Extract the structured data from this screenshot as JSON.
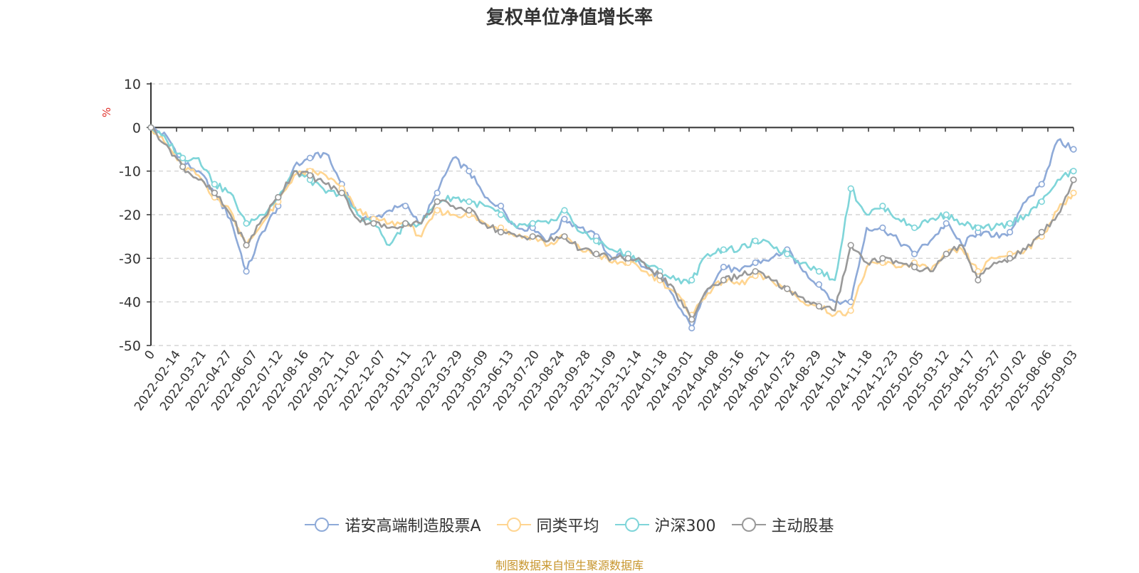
{
  "title": "复权单位净值增长率",
  "source_note": "制图数据来自恒生聚源数据库",
  "chart_data": {
    "type": "line",
    "title": "复权单位净值增长率",
    "ylabel": "%",
    "xlabel": "",
    "ylim": [
      -50,
      10
    ],
    "yticks": [
      10,
      0,
      -10,
      -20,
      -30,
      -40,
      -50
    ],
    "grid": true,
    "legend_position": "bottom",
    "x_tick_labels": [
      "0",
      "2022-02-14",
      "2022-03-21",
      "2022-04-27",
      "2022-06-07",
      "2022-07-12",
      "2022-08-16",
      "2022-09-21",
      "2022-11-02",
      "2022-12-07",
      "2023-01-11",
      "2023-02-22",
      "2023-03-29",
      "2023-05-09",
      "2023-06-13",
      "2023-07-20",
      "2023-08-24",
      "2023-09-28",
      "2023-11-09",
      "2023-12-14",
      "2024-01-18",
      "2024-03-01",
      "2024-04-08",
      "2024-05-16",
      "2024-06-21",
      "2024-07-25",
      "2024-08-29",
      "2024-10-14",
      "2024-11-18",
      "2024-12-23",
      "2025-02-05",
      "2025-03-12",
      "2025-04-17",
      "2025-05-27",
      "2025-07-02",
      "2025-08-06",
      "2025-09-03"
    ],
    "series": [
      {
        "name": "诺安高端制造股票A",
        "color": "#8eaad8",
        "values": [
          0,
          -2,
          -8,
          -10,
          -15,
          -21,
          -33,
          -24,
          -18,
          -9,
          -7,
          -6,
          -13,
          -20,
          -21,
          -19,
          -18,
          -22,
          -15,
          -7,
          -10,
          -16,
          -18,
          -23,
          -23,
          -26,
          -21,
          -23,
          -25,
          -30,
          -29,
          -32,
          -34,
          -40,
          -46,
          -37,
          -32,
          -33,
          -31,
          -30,
          -28,
          -33,
          -36,
          -40,
          -40,
          -23,
          -23,
          -26,
          -29,
          -26,
          -22,
          -27,
          -24,
          -25,
          -24,
          -17,
          -13,
          -3,
          -5
        ]
      },
      {
        "name": "同类平均",
        "color": "#ffd591",
        "values": [
          0,
          -4,
          -9,
          -11,
          -16,
          -19,
          -27,
          -22,
          -17,
          -11,
          -10,
          -11,
          -14,
          -19,
          -21,
          -22,
          -22,
          -25,
          -19,
          -20,
          -20,
          -22,
          -23,
          -25,
          -25,
          -27,
          -25,
          -28,
          -29,
          -31,
          -31,
          -33,
          -35,
          -38,
          -43,
          -38,
          -35,
          -36,
          -34,
          -35,
          -37,
          -40,
          -41,
          -43,
          -42,
          -32,
          -31,
          -32,
          -31,
          -33,
          -29,
          -28,
          -33,
          -30,
          -29,
          -28,
          -25,
          -19,
          -15
        ]
      },
      {
        "name": "沪深300",
        "color": "#7fd5d9",
        "values": [
          0,
          -3,
          -7,
          -7,
          -13,
          -15,
          -22,
          -20,
          -16,
          -10,
          -12,
          -15,
          -15,
          -20,
          -22,
          -27,
          -22,
          -22,
          -17,
          -16,
          -17,
          -18,
          -20,
          -23,
          -22,
          -22,
          -19,
          -24,
          -26,
          -28,
          -29,
          -31,
          -33,
          -35,
          -35,
          -29,
          -28,
          -28,
          -26,
          -27,
          -29,
          -31,
          -33,
          -35,
          -14,
          -20,
          -18,
          -21,
          -23,
          -21,
          -20,
          -22,
          -23,
          -23,
          -22,
          -20,
          -17,
          -12,
          -10
        ]
      },
      {
        "name": "主动股基",
        "color": "#999999",
        "values": [
          0,
          -4,
          -9,
          -12,
          -15,
          -20,
          -27,
          -21,
          -16,
          -10,
          -11,
          -13,
          -15,
          -21,
          -22,
          -23,
          -22,
          -22,
          -17,
          -18,
          -19,
          -22,
          -24,
          -25,
          -25,
          -26,
          -25,
          -28,
          -29,
          -30,
          -30,
          -31,
          -34,
          -38,
          -44,
          -37,
          -35,
          -34,
          -33,
          -35,
          -37,
          -39,
          -41,
          -42,
          -27,
          -31,
          -30,
          -31,
          -32,
          -33,
          -29,
          -27,
          -35,
          -31,
          -30,
          -28,
          -24,
          -20,
          -12
        ]
      }
    ]
  }
}
